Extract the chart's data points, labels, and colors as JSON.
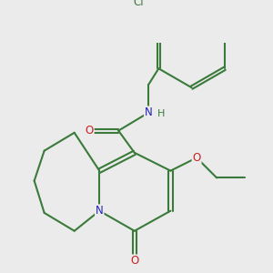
{
  "bg_color": "#ebebeb",
  "bond_color": "#3a7a3a",
  "n_color": "#2222bb",
  "o_color": "#cc2020",
  "cl_color": "#3a7a3a",
  "bond_lw": 1.5,
  "font_size": 8.5,
  "fig_size": [
    3.0,
    3.0
  ],
  "dpi": 100,
  "xlim": [
    0,
    10
  ],
  "ylim": [
    0,
    10
  ]
}
